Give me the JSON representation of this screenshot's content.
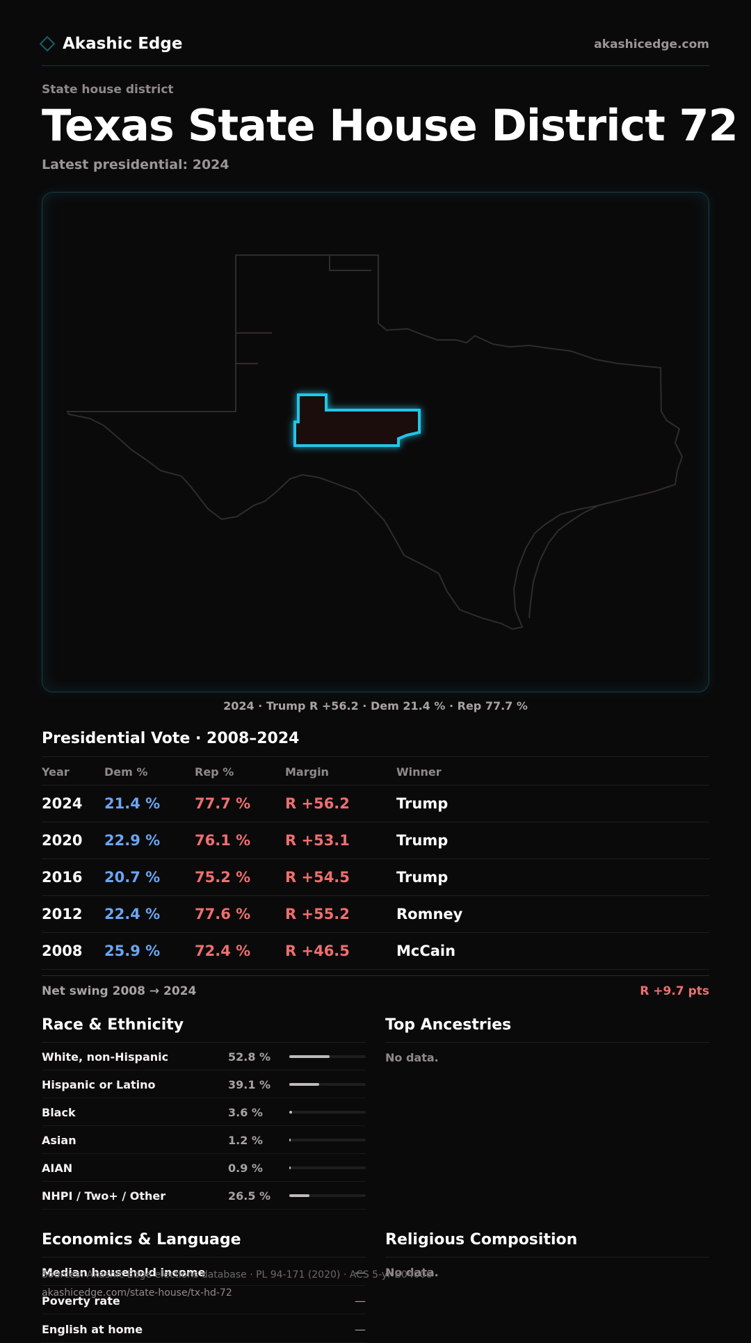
{
  "header": {
    "brand": "Akashic Edge",
    "site": "akashicedge.com"
  },
  "page": {
    "kicker": "State house district",
    "title_state": "Texas",
    "title_district": "State House District 72",
    "subtitle": "Latest presidential: 2024",
    "map_caption": "2024 · Trump R +56.2 · Dem 21.4 % · Rep 77.7 %"
  },
  "presidential": {
    "title": "Presidential Vote · 2008–2024",
    "columns": {
      "year": "Year",
      "dem": "Dem %",
      "rep": "Rep %",
      "margin": "Margin",
      "winner": "Winner"
    },
    "rows": [
      {
        "year": "2024",
        "dem": "21.4 %",
        "rep": "77.7 %",
        "margin": "R +56.2",
        "winner": "Trump"
      },
      {
        "year": "2020",
        "dem": "22.9 %",
        "rep": "76.1 %",
        "margin": "R +53.1",
        "winner": "Trump"
      },
      {
        "year": "2016",
        "dem": "20.7 %",
        "rep": "75.2 %",
        "margin": "R +54.5",
        "winner": "Trump"
      },
      {
        "year": "2012",
        "dem": "22.4 %",
        "rep": "77.6 %",
        "margin": "R +55.2",
        "winner": "Romney"
      },
      {
        "year": "2008",
        "dem": "25.9 %",
        "rep": "72.4 %",
        "margin": "R +46.5",
        "winner": "McCain"
      }
    ],
    "net_swing_label": "Net swing 2008 → 2024",
    "net_swing_value": "R +9.7 pts"
  },
  "race": {
    "title": "Race & Ethnicity",
    "rows": [
      {
        "label": "White, non-Hispanic",
        "pct": "52.8 %",
        "value": 52.8
      },
      {
        "label": "Hispanic or Latino",
        "pct": "39.1 %",
        "value": 39.1
      },
      {
        "label": "Black",
        "pct": "3.6 %",
        "value": 3.6
      },
      {
        "label": "Asian",
        "pct": "1.2 %",
        "value": 1.2
      },
      {
        "label": "AIAN",
        "pct": "0.9 %",
        "value": 0.9
      },
      {
        "label": "NHPI / Two+ / Other",
        "pct": "26.5 %",
        "value": 26.5
      }
    ]
  },
  "ancestries": {
    "title": "Top Ancestries",
    "empty": "No data."
  },
  "economics": {
    "title": "Economics & Language",
    "rows": [
      {
        "label": "Median household income",
        "value": "—"
      },
      {
        "label": "Poverty rate",
        "value": "—"
      },
      {
        "label": "English at home",
        "value": "—"
      }
    ]
  },
  "religion": {
    "title": "Religious Composition",
    "empty": "No data."
  },
  "footer": {
    "sources": "Sources: Akashic Edge elections database · PL 94-171 (2020) · ACS 5-yr B04006",
    "url": "akashicedge.com/state-house/tx-hd-72"
  },
  "colors": {
    "accent": "#22c6e6",
    "dem": "#6aa6f2",
    "rep": "#ef6f6f",
    "background": "#0b0a0b"
  },
  "icons": {
    "brand": "diamond-icon"
  }
}
